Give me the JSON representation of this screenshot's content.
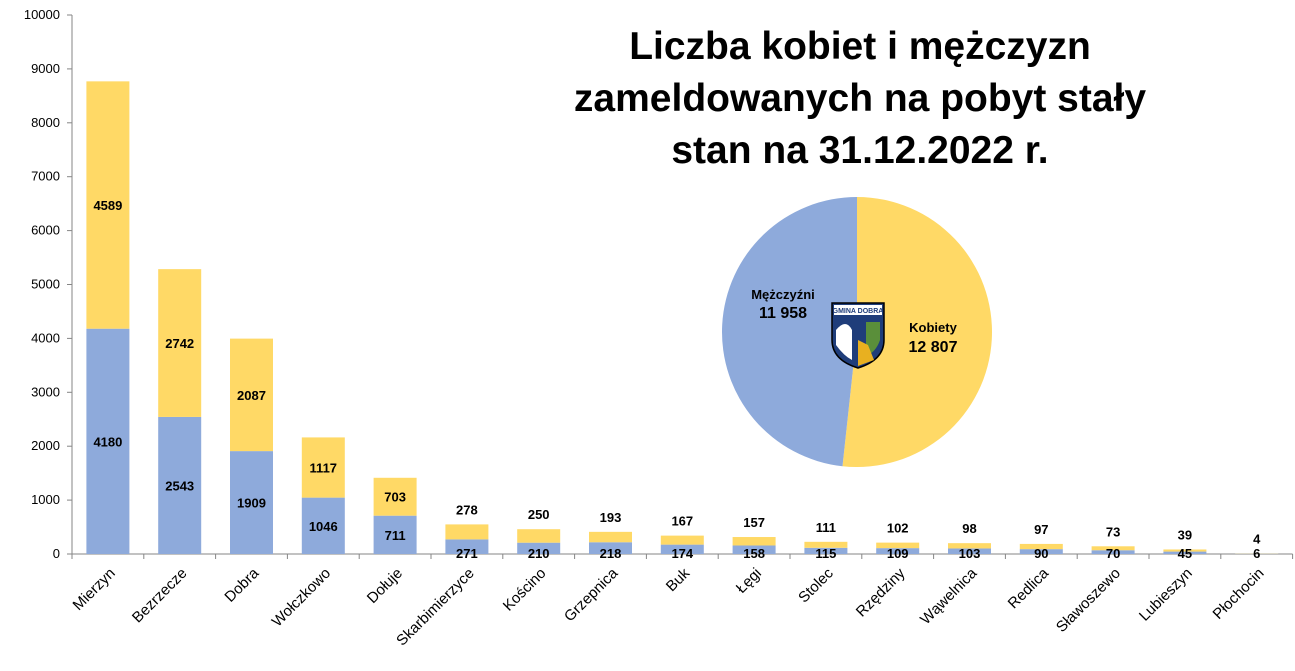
{
  "chart_data": [
    {
      "type": "bar",
      "stacked": true,
      "categories": [
        "Mierzyn",
        "Bezrzecze",
        "Dobra",
        "Wołczkowo",
        "Dołuje",
        "Skarbimierzyce",
        "Kościno",
        "Grzepnica",
        "Buk",
        "Łęgi",
        "Stolec",
        "Rzędziny",
        "Wąwelnica",
        "Redlica",
        "Sławoszewo",
        "Lubieszyn",
        "Płochocin"
      ],
      "series": [
        {
          "color": "#8eaadb",
          "values": [
            4180,
            2543,
            1909,
            1046,
            711,
            271,
            210,
            218,
            174,
            158,
            115,
            109,
            103,
            90,
            70,
            45,
            6
          ]
        },
        {
          "color": "#ffd966",
          "values": [
            4589,
            2742,
            2087,
            1117,
            703,
            278,
            250,
            193,
            167,
            157,
            111,
            102,
            98,
            97,
            73,
            39,
            4
          ]
        }
      ],
      "ylim": [
        0,
        10000
      ],
      "yticks": [
        "0",
        "1000",
        "2000",
        "3000",
        "4000",
        "5000",
        "6000",
        "7000",
        "8000",
        "9000",
        "10000"
      ],
      "grid": false,
      "legend": "none"
    },
    {
      "type": "pie",
      "title": [
        "Liczba kobiet i mężczyzn",
        "zameldowanych na pobyt stały",
        "stan na 31.12.2022 r."
      ],
      "slices": [
        {
          "label": "Kobiety",
          "value": 12807,
          "value_text": "12 807",
          "color": "#ffd966"
        },
        {
          "label": "Mężczyźni",
          "value": 11958,
          "value_text": "11 958",
          "color": "#8eaadb"
        }
      ],
      "logo_text": "GMINA DOBRA"
    }
  ]
}
